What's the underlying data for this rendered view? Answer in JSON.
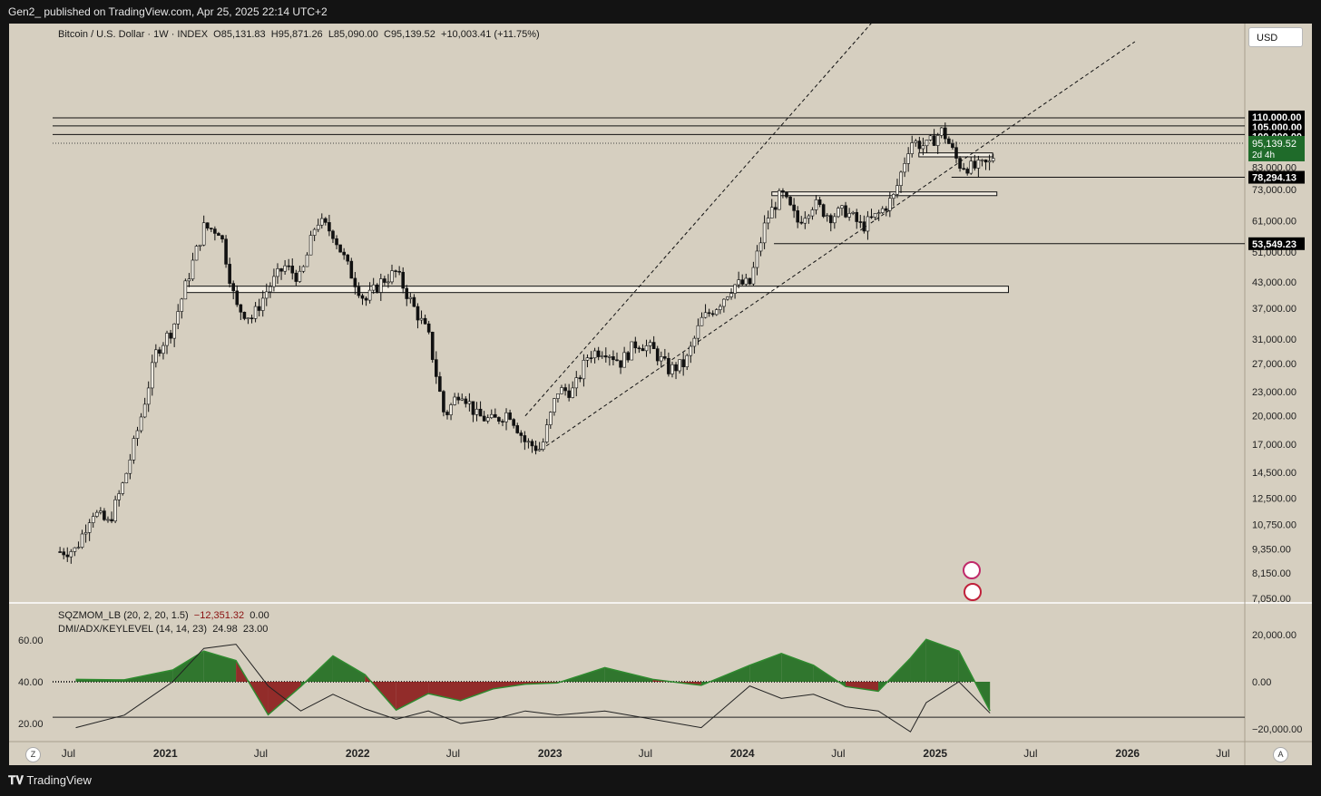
{
  "header": {
    "published": "Gen2_ published on TradingView.com, Apr 25, 2025 22:14 UTC+2"
  },
  "symbol": {
    "name": "Bitcoin / U.S. Dollar · 1W · INDEX",
    "open": "O85,131.83",
    "high": "H95,871.26",
    "low": "L85,090.00",
    "close": "C95,139.52",
    "change": "+10,003.41 (+11.75%)"
  },
  "currency_button": "USD",
  "indicators": {
    "sqz_name": "SQZMOM_LB (20, 2, 20, 1.5)",
    "sqz_value": "−12,351.32",
    "sqz_value2": "0.00",
    "dmi_name": "DMI/ADX/KEYLEVEL (14, 14, 23)",
    "dmi_value": "24.98",
    "dmi_value2": "23.00"
  },
  "footer": {
    "brand": "TradingView",
    "z_button": "Z",
    "a_button": "A"
  },
  "colors": {
    "background": "#d6cfc0",
    "bull": "#1e6b1e",
    "bear": "#8b1a1a",
    "price_tag": "#1f6b2a",
    "label_bg": "#000000"
  },
  "chart_data": [
    {
      "type": "candlestick",
      "title": "Bitcoin / U.S. Dollar · 1W · INDEX",
      "scale": "log",
      "x_ticks": [
        "Jul",
        "2021",
        "Jul",
        "2022",
        "Jul",
        "2023",
        "Jul",
        "2024",
        "Jul",
        "2025",
        "Jul",
        "2026",
        "Jul"
      ],
      "y_ticks": [
        "110,000.00",
        "105,000.00",
        "100,000.00",
        "83,000.00",
        "73,000.00",
        "61,000.00",
        "51,000.00",
        "43,000.00",
        "37,000.00",
        "31,000.00",
        "27,000.00",
        "23,000.00",
        "20,000.00",
        "17,000.00",
        "14,500.00",
        "12,500.00",
        "10,750.00",
        "9,350.00",
        "8,150.00",
        "7,050.00"
      ],
      "price_labels": [
        "110,000.00",
        "105,000.00",
        "100,000.00",
        "78,294.13",
        "53,549.23"
      ],
      "last_price": "95,139.52",
      "countdown": "2d 4h",
      "horizontal_levels": [
        110000,
        105000,
        100000,
        78294.13,
        53549.23
      ],
      "zones": [
        [
          40500,
          42000
        ],
        [
          70500,
          72000
        ],
        [
          88000,
          90000
        ]
      ],
      "weekly_close_path": [
        {
          "date": "2020-06",
          "close": 9200
        },
        {
          "date": "2020-07",
          "close": 9300
        },
        {
          "date": "2020-08",
          "close": 11600
        },
        {
          "date": "2020-09",
          "close": 10800
        },
        {
          "date": "2020-10",
          "close": 13800
        },
        {
          "date": "2020-11",
          "close": 19700
        },
        {
          "date": "2020-12",
          "close": 29000
        },
        {
          "date": "2021-01",
          "close": 33000
        },
        {
          "date": "2021-02",
          "close": 45000
        },
        {
          "date": "2021-03",
          "close": 58800
        },
        {
          "date": "2021-04",
          "close": 57700
        },
        {
          "date": "2021-05",
          "close": 37300
        },
        {
          "date": "2021-06",
          "close": 35000
        },
        {
          "date": "2021-07",
          "close": 41500
        },
        {
          "date": "2021-08",
          "close": 47100
        },
        {
          "date": "2021-09",
          "close": 43800
        },
        {
          "date": "2021-10",
          "close": 61300
        },
        {
          "date": "2021-11",
          "close": 57000
        },
        {
          "date": "2021-12",
          "close": 46300
        },
        {
          "date": "2022-01",
          "close": 38500
        },
        {
          "date": "2022-02",
          "close": 43200
        },
        {
          "date": "2022-03",
          "close": 45500
        },
        {
          "date": "2022-04",
          "close": 37700
        },
        {
          "date": "2022-05",
          "close": 31800
        },
        {
          "date": "2022-06",
          "close": 19900
        },
        {
          "date": "2022-07",
          "close": 23300
        },
        {
          "date": "2022-08",
          "close": 20000
        },
        {
          "date": "2022-09",
          "close": 19400
        },
        {
          "date": "2022-10",
          "close": 20500
        },
        {
          "date": "2022-11",
          "close": 17200
        },
        {
          "date": "2022-12",
          "close": 16500
        },
        {
          "date": "2023-01",
          "close": 23100
        },
        {
          "date": "2023-02",
          "close": 23100
        },
        {
          "date": "2023-03",
          "close": 28500
        },
        {
          "date": "2023-04",
          "close": 29300
        },
        {
          "date": "2023-05",
          "close": 27200
        },
        {
          "date": "2023-06",
          "close": 30500
        },
        {
          "date": "2023-07",
          "close": 29200
        },
        {
          "date": "2023-08",
          "close": 26000
        },
        {
          "date": "2023-09",
          "close": 27000
        },
        {
          "date": "2023-10",
          "close": 34500
        },
        {
          "date": "2023-11",
          "close": 37700
        },
        {
          "date": "2023-12",
          "close": 42300
        },
        {
          "date": "2024-01",
          "close": 42600
        },
        {
          "date": "2024-02",
          "close": 61200
        },
        {
          "date": "2024-03",
          "close": 71300
        },
        {
          "date": "2024-04",
          "close": 60700
        },
        {
          "date": "2024-05",
          "close": 67500
        },
        {
          "date": "2024-06",
          "close": 62700
        },
        {
          "date": "2024-07",
          "close": 64600
        },
        {
          "date": "2024-08",
          "close": 58900
        },
        {
          "date": "2024-09",
          "close": 63300
        },
        {
          "date": "2024-10",
          "close": 70200
        },
        {
          "date": "2024-11",
          "close": 96400
        },
        {
          "date": "2024-12",
          "close": 93400
        },
        {
          "date": "2025-01",
          "close": 102400
        },
        {
          "date": "2025-02",
          "close": 84300
        },
        {
          "date": "2025-03",
          "close": 82500
        },
        {
          "date": "2025-04-19",
          "close": 85131.83
        },
        {
          "date": "2025-04-25",
          "close": 95139.52
        }
      ],
      "dashed_trendlines": [
        {
          "from": {
            "date": "2022-11",
            "price": 20000
          },
          "to": {
            "date": "2025-01",
            "price": 300000
          }
        },
        {
          "from": {
            "date": "2022-12",
            "price": 16500
          },
          "to": {
            "date": "2026-01",
            "price": 170000
          }
        }
      ]
    },
    {
      "type": "area",
      "title": "SQZMOM_LB (20, 2, 20, 1.5)",
      "y_ticks": [
        "20,000.00",
        "0.00",
        "−20,000.00"
      ],
      "y_ticks_left": [
        "60.00",
        "40.00",
        "20.00"
      ],
      "key_level": 23,
      "series": [
        {
          "name": "SQZMOM_LB",
          "x": [
            "2020-07",
            "2020-10",
            "2021-01",
            "2021-03",
            "2021-05",
            "2021-07",
            "2021-09",
            "2021-11",
            "2022-01",
            "2022-03",
            "2022-05",
            "2022-07",
            "2022-09",
            "2022-11",
            "2023-01",
            "2023-04",
            "2023-07",
            "2023-10",
            "2024-01",
            "2024-03",
            "2024-05",
            "2024-07",
            "2024-09",
            "2024-11",
            "2024-12",
            "2025-02",
            "2025-04"
          ],
          "values": [
            1000,
            800,
            5000,
            13000,
            9000,
            -14000,
            -2000,
            11000,
            3000,
            -12000,
            -5000,
            -8000,
            -3000,
            -1000,
            -500,
            6000,
            1000,
            -1500,
            7000,
            12000,
            7000,
            -2000,
            -4000,
            10000,
            18000,
            13000,
            -12351
          ]
        },
        {
          "name": "ADX",
          "x": [
            "2020-07",
            "2020-10",
            "2021-01",
            "2021-03",
            "2021-05",
            "2021-07",
            "2021-09",
            "2021-11",
            "2022-01",
            "2022-03",
            "2022-05",
            "2022-07",
            "2022-09",
            "2022-11",
            "2023-01",
            "2023-04",
            "2023-07",
            "2023-10",
            "2024-01",
            "2024-03",
            "2024-05",
            "2024-07",
            "2024-09",
            "2024-11",
            "2024-12",
            "2025-02",
            "2025-04"
          ],
          "values": [
            18,
            24,
            40,
            56,
            58,
            38,
            26,
            34,
            27,
            22,
            26,
            20,
            22,
            26,
            24,
            26,
            22,
            18,
            38,
            32,
            34,
            28,
            26,
            16,
            30,
            40,
            24.98
          ]
        }
      ]
    }
  ]
}
